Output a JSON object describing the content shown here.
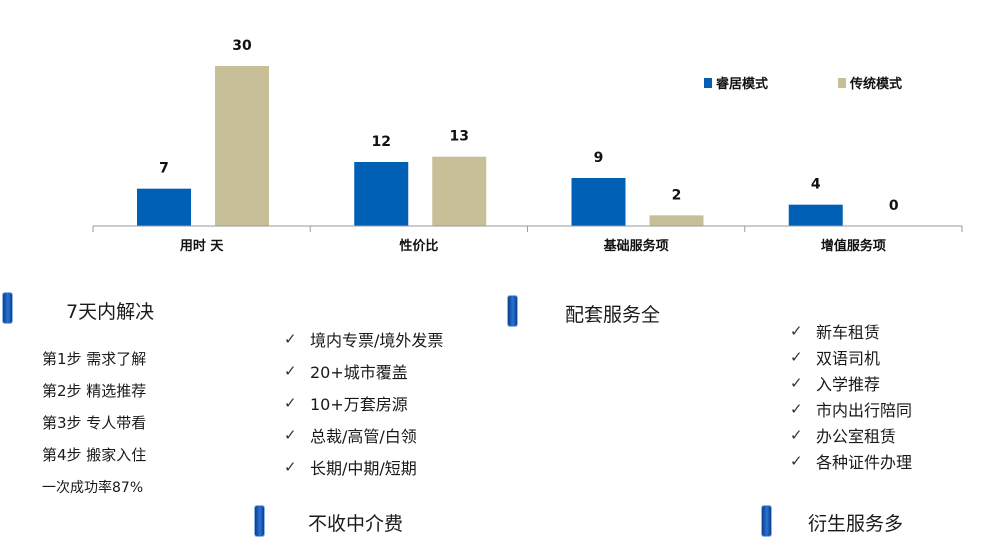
{
  "chart_data": {
    "type": "bar",
    "categories": [
      "用时 天",
      "性价比",
      "基础服务项",
      "增值服务项"
    ],
    "series": [
      {
        "name": "睿居模式",
        "values": [
          7,
          12,
          9,
          4
        ],
        "color": "#0060b6"
      },
      {
        "name": "传统模式",
        "values": [
          30,
          13,
          2,
          0
        ],
        "color": "#c7bf98"
      }
    ],
    "legend_position": "top-right",
    "grid": false,
    "ylim": [
      0,
      30
    ]
  },
  "left_block": {
    "heading": "7天内解决",
    "steps": [
      "第1步  需求了解",
      "第2步  精选推荐",
      "第3步  专人带看",
      "第4步  搬家入住",
      "一次成功率87%"
    ]
  },
  "middle_block": {
    "items": [
      "境内专票/境外发票",
      "20+城市覆盖",
      "10+万套房源",
      "总裁/高管/白领",
      "长期/中期/短期"
    ],
    "footer_heading": "不收中介费"
  },
  "right_block": {
    "heading": "配套服务全",
    "items": [
      "新车租赁",
      "双语司机",
      "入学推荐",
      "市内出行陪同",
      "办公室租赁",
      "各种证件办理"
    ],
    "footer_heading": "衍生服务多"
  },
  "check_symbol": "✓"
}
